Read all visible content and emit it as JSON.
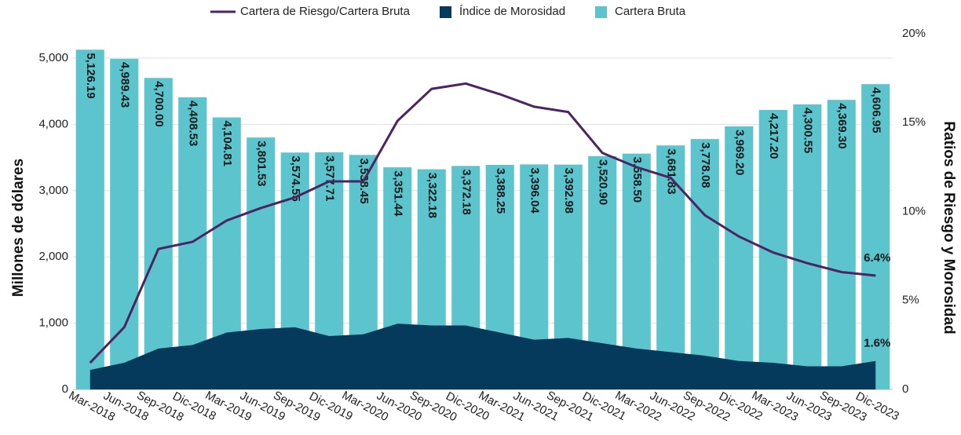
{
  "chart_data": {
    "type": "bar",
    "categories": [
      "Mar-2018",
      "Jun-2018",
      "Sep-2018",
      "Dic-2018",
      "Mar-2019",
      "Jun-2019",
      "Sep-2019",
      "Dic-2019",
      "Mar-2020",
      "Jun-2020",
      "Sep-2020",
      "Dic-2020",
      "Mar-2021",
      "Jun-2021",
      "Sep-2021",
      "Dic-2021",
      "Mar-2022",
      "Jun-2022",
      "Sep-2022",
      "Dic-2022",
      "Mar-2023",
      "Jun-2023",
      "Sep-2023",
      "Dic-2023"
    ],
    "series": [
      {
        "name": "Cartera de Riesgo/Cartera Bruta",
        "type": "line",
        "axis": "y2",
        "color": "#4b2462",
        "values": [
          1.5,
          3.5,
          7.9,
          8.3,
          9.5,
          10.2,
          10.8,
          11.7,
          11.7,
          15.1,
          16.9,
          17.2,
          16.6,
          15.9,
          15.6,
          13.3,
          12.5,
          11.9,
          9.8,
          8.6,
          7.7,
          7.1,
          6.6,
          6.4
        ],
        "value_labels": [
          null,
          null,
          null,
          null,
          null,
          null,
          null,
          null,
          null,
          null,
          null,
          null,
          null,
          null,
          null,
          null,
          null,
          null,
          null,
          null,
          null,
          null,
          null,
          "6.4%"
        ]
      },
      {
        "name": "Índice de Morosidad",
        "type": "area",
        "axis": "y2",
        "color": "#063a5c",
        "values": [
          1.1,
          1.5,
          2.3,
          2.5,
          3.2,
          3.4,
          3.5,
          3.0,
          3.1,
          3.7,
          3.6,
          3.6,
          3.2,
          2.8,
          2.9,
          2.6,
          2.3,
          2.1,
          1.9,
          1.6,
          1.5,
          1.3,
          1.3,
          1.6
        ],
        "value_labels": [
          null,
          null,
          null,
          null,
          null,
          null,
          null,
          null,
          null,
          null,
          null,
          null,
          null,
          null,
          null,
          null,
          null,
          null,
          null,
          null,
          null,
          null,
          null,
          "1.6%"
        ]
      },
      {
        "name": "Cartera Bruta",
        "type": "bar",
        "color": "#5bc4cc",
        "values": [
          5126.19,
          4989.43,
          4700.0,
          4408.53,
          4104.81,
          3801.53,
          3574.55,
          3577.71,
          3538.45,
          3351.44,
          3322.18,
          3372.18,
          3388.25,
          3396.04,
          3392.98,
          3520.9,
          3558.5,
          3681.83,
          3778.08,
          3969.2,
          4217.2,
          4300.55,
          4369.3,
          4606.95
        ],
        "value_labels": [
          "5,126.19",
          "4,989.43",
          "4,700.00",
          "4,408.53",
          "4,104.81",
          "3,801.53",
          "3,574.55",
          "3,577.71",
          "3,538.45",
          "3,351.44",
          "3,322.18",
          "3,372.18",
          "3,388.25",
          "3,396.04",
          "3,392.98",
          "3,520.90",
          "3,558.50",
          "3,681.83",
          "3,778.08",
          "3,969.20",
          "4,217.20",
          "4,300.55",
          "4,369.30",
          "4,606.95"
        ]
      }
    ],
    "ylabel": "Millones de dólares",
    "y2label": "Ratios de Riesgo y Morosidad",
    "ylim": [
      0,
      5367
    ],
    "yticks": [
      0,
      {
        "value": 1000,
        "label": "1,000"
      },
      {
        "value": 2000,
        "label": "2,000"
      },
      {
        "value": 3000,
        "label": "3,000"
      },
      {
        "value": 4000,
        "label": "4,000"
      },
      {
        "value": 5000,
        "label": "5,000"
      }
    ],
    "y2lim": [
      0,
      20
    ],
    "y2ticks": [
      0,
      {
        "value": 5,
        "label": "5%"
      },
      {
        "value": 10,
        "label": "10%"
      },
      {
        "value": 15,
        "label": "15%"
      },
      {
        "value": 20,
        "label": "20%"
      }
    ],
    "grid": true,
    "legend": "top"
  }
}
